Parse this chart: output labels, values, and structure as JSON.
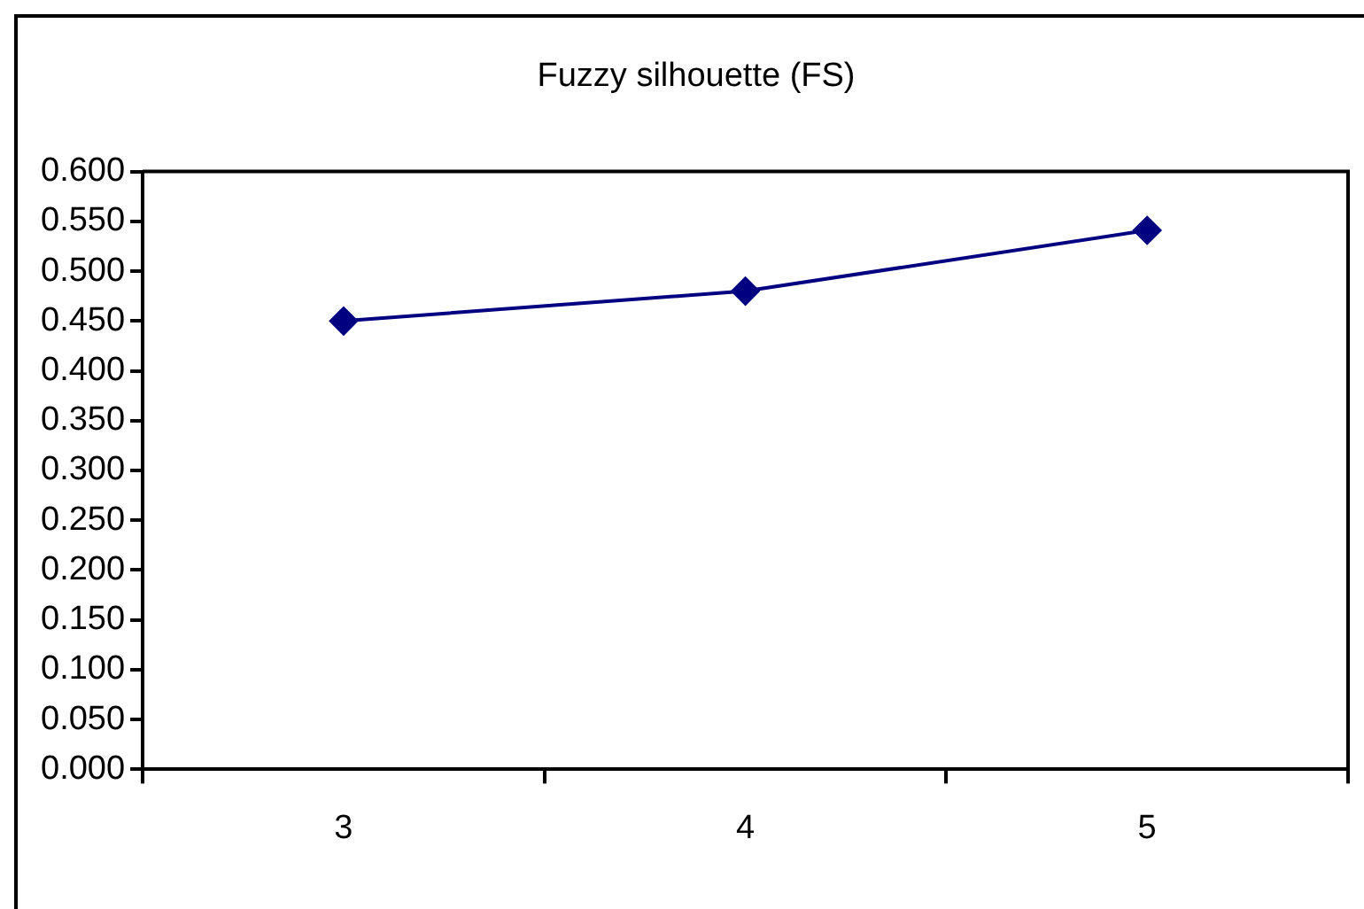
{
  "chart_data": {
    "type": "line",
    "title": "Fuzzy silhouette (FS)",
    "categories": [
      "3",
      "4",
      "5"
    ],
    "series": [
      {
        "color": "#000080",
        "values": [
          0.45,
          0.48,
          0.541
        ]
      }
    ],
    "ylim": [
      0,
      0.6
    ],
    "yticks": [
      {
        "value": 0,
        "label": "0.000"
      },
      {
        "value": 0.05,
        "label": "0.050"
      },
      {
        "value": 0.1,
        "label": "0.100"
      },
      {
        "value": 0.15,
        "label": "0.150"
      },
      {
        "value": 0.2,
        "label": "0.200"
      },
      {
        "value": 0.25,
        "label": "0.250"
      },
      {
        "value": 0.3,
        "label": "0.300"
      },
      {
        "value": 0.35,
        "label": "0.350"
      },
      {
        "value": 0.4,
        "label": "0.400"
      },
      {
        "value": 0.45,
        "label": "0.450"
      },
      {
        "value": 0.5,
        "label": "0.500"
      },
      {
        "value": 0.55,
        "label": "0.550"
      },
      {
        "value": 0.6,
        "label": "0.600"
      }
    ],
    "grid": false,
    "legend": false,
    "marker": "diamond",
    "line_style": "solid"
  }
}
